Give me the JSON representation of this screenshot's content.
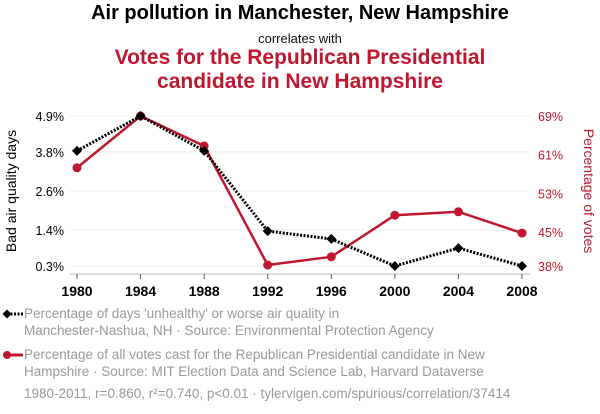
{
  "header": {
    "title": "Air pollution in Manchester, New Hampshire",
    "connector": "correlates with",
    "subtitle_line1": "Votes for the Republican Presidential",
    "subtitle_line2": "candidate in New Hampshire"
  },
  "legend": {
    "series1": {
      "line1": "Percentage of days 'unhealthy' or worse air quality in",
      "line2": "Manchester-Nashua, NH · Source: Environmental Protection Agency"
    },
    "series2": {
      "line1": "Percentage of all votes cast for the Republican Presidential candidate in New",
      "line2": "Hampshire · Source: MIT Election Data and Science Lab, Harvard Dataverse"
    }
  },
  "footer": "1980-2011, r=0.860, r²=0.740, p<0.01 · tylervigen.com/spurious/correlation/37414",
  "colors": {
    "series1": "#000000",
    "series2": "#c0162f",
    "axis_right": "#c0162f",
    "legend_text": "#999999",
    "grid": "#eeeeee"
  },
  "chart_data": {
    "type": "line",
    "title": "Air pollution in Manchester, New Hampshire correlates with Votes for the Republican Presidential candidate in New Hampshire",
    "x": [
      1980,
      1984,
      1988,
      1992,
      1996,
      2000,
      2004,
      2008
    ],
    "x_tick_labels": [
      "1980",
      "1984",
      "1988",
      "1992",
      "1996",
      "2000",
      "2004",
      "2008"
    ],
    "xlabel": "",
    "ylabel_left": "Bad air quality days",
    "ylabel_right": "Percentage of votes",
    "y_left_ticks": [
      4.9,
      3.8,
      2.6,
      1.4,
      0.3
    ],
    "y_left_tick_labels": [
      "4.9%",
      "3.8%",
      "2.6%",
      "1.4%",
      "0.3%"
    ],
    "y_left_range": [
      0.3,
      4.9
    ],
    "y_right_ticks": [
      69,
      61,
      53,
      45,
      38
    ],
    "y_right_tick_labels": [
      "69%",
      "61%",
      "53%",
      "45%",
      "38%"
    ],
    "y_right_range": [
      38,
      69
    ],
    "grid": true,
    "legend_position": "bottom",
    "series": [
      {
        "name": "Percentage of days 'unhealthy' or worse air quality in Manchester-Nashua, NH",
        "axis": "left",
        "style": "dotted",
        "marker": "diamond",
        "values": [
          3.83,
          4.9,
          3.83,
          1.37,
          1.13,
          0.3,
          0.85,
          0.3
        ]
      },
      {
        "name": "Percentage of all votes cast for the Republican Presidential candidate in New Hampshire",
        "axis": "right",
        "style": "solid",
        "marker": "circle",
        "values": [
          58.3,
          69.0,
          62.8,
          38.2,
          39.9,
          48.5,
          49.2,
          44.8
        ]
      }
    ]
  }
}
